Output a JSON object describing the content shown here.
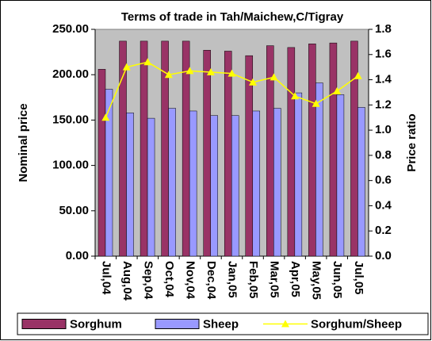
{
  "chart_data": {
    "type": "bar-line",
    "title": "Terms of trade in Tah/Maichew,C/Tigray",
    "y_label": "Nominal price",
    "y2_label": "Price ratio",
    "categories": [
      "Jul,04",
      "Aug,04",
      "Sep,04",
      "Oct,04",
      "Nov,04",
      "Dec,04",
      "Jan,05",
      "Feb,05",
      "Mar,05",
      "Apr,05",
      "May,05",
      "Jun,05",
      "Jul,05"
    ],
    "series": [
      {
        "name": "Sorghum",
        "type": "bar",
        "color": "#993366",
        "values": [
          206,
          237,
          237,
          237,
          237,
          227,
          226,
          221,
          232,
          230,
          234,
          235,
          237
        ]
      },
      {
        "name": "Sheep",
        "type": "bar",
        "color": "#9999ff",
        "values": [
          184,
          158,
          152,
          163,
          160,
          155,
          155,
          160,
          163,
          180,
          191,
          178,
          164
        ]
      },
      {
        "name": "Sorghum/Sheep",
        "type": "line",
        "axis": "y2",
        "color": "#ffff00",
        "values": [
          1.1,
          1.5,
          1.54,
          1.44,
          1.47,
          1.46,
          1.45,
          1.38,
          1.42,
          1.27,
          1.21,
          1.31,
          1.43
        ]
      }
    ],
    "ylim": [
      0,
      250
    ],
    "yticks": [
      {
        "value": 0,
        "label": "0.00"
      },
      {
        "value": 50,
        "label": "50.00"
      },
      {
        "value": 100,
        "label": "100.00"
      },
      {
        "value": 150,
        "label": "150.00"
      },
      {
        "value": 200,
        "label": "200.00"
      },
      {
        "value": 250,
        "label": "250.00"
      }
    ],
    "y2lim": [
      0,
      1.8
    ],
    "y2ticks": [
      {
        "value": 0,
        "label": "0.0"
      },
      0.2,
      0.4,
      0.6,
      0.8,
      {
        "value": 1,
        "label": "1.0"
      },
      1.2,
      1.4,
      1.6,
      1.8
    ],
    "legend": "bottom",
    "plot_color": "#c0c0c0"
  }
}
